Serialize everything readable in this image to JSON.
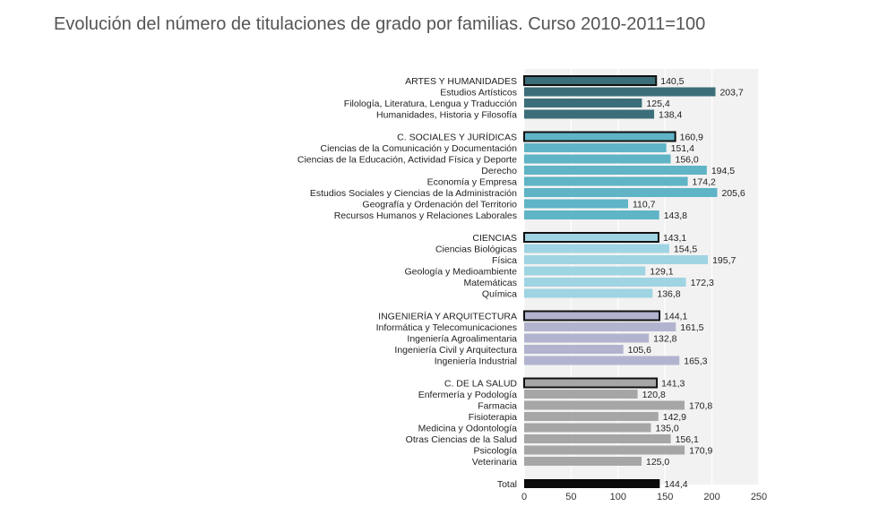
{
  "chart_data": {
    "type": "bar",
    "orientation": "horizontal",
    "title": "Evolución del número de titulaciones de grado por familias. Curso 2010-2011=100",
    "xlabel": "",
    "ylabel": "",
    "xlim": [
      0,
      250
    ],
    "xticks": [
      "0",
      "50",
      "100",
      "150",
      "200",
      "250"
    ],
    "grid": true,
    "legend": "none",
    "groups": [
      {
        "name": "ARTES Y HUMANIDADES",
        "value": 140.5,
        "label": "140,5",
        "color": "#3b6e78",
        "border": "#111111",
        "items": [
          {
            "name": "Estudios Artísticos",
            "value": 203.7,
            "label": "203,7"
          },
          {
            "name": "Filología, Literatura, Lengua y Traducción",
            "value": 125.4,
            "label": "125,4"
          },
          {
            "name": "Humanidades, Historia y Filosofía",
            "value": 138.4,
            "label": "138,4"
          }
        ]
      },
      {
        "name": "C. SOCIALES Y JURÍDICAS",
        "value": 160.9,
        "label": "160,9",
        "color": "#5fb4c6",
        "border": "#111111",
        "items": [
          {
            "name": "Ciencias de la Comunicación y Documentación",
            "value": 151.4,
            "label": "151,4"
          },
          {
            "name": "Ciencias de la Educación, Actividad Física y Deporte",
            "value": 156.0,
            "label": "156,0"
          },
          {
            "name": "Derecho",
            "value": 194.5,
            "label": "194,5"
          },
          {
            "name": "Economía y Empresa",
            "value": 174.2,
            "label": "174,2"
          },
          {
            "name": "Estudios Sociales y Ciencias de la Administración",
            "value": 205.6,
            "label": "205,6"
          },
          {
            "name": "Geografía y Ordenación del Territorio",
            "value": 110.7,
            "label": "110,7"
          },
          {
            "name": "Recursos Humanos y Relaciones Laborales",
            "value": 143.8,
            "label": "143,8"
          }
        ]
      },
      {
        "name": "CIENCIAS",
        "value": 143.1,
        "label": "143,1",
        "color": "#9fd4e2",
        "border": "#111111",
        "items": [
          {
            "name": "Ciencias Biológicas",
            "value": 154.5,
            "label": "154,5"
          },
          {
            "name": "Física",
            "value": 195.7,
            "label": "195,7"
          },
          {
            "name": "Geología y Medioambiente",
            "value": 129.1,
            "label": "129,1"
          },
          {
            "name": "Matemáticas",
            "value": 172.3,
            "label": "172,3"
          },
          {
            "name": "Química",
            "value": 136.8,
            "label": "136,8"
          }
        ]
      },
      {
        "name": "INGENIERÍA Y ARQUITECTURA",
        "value": 144.1,
        "label": "144,1",
        "color": "#b2b4cf",
        "border": "#111111",
        "items": [
          {
            "name": "Informática y Telecomunicaciones",
            "value": 161.5,
            "label": "161,5"
          },
          {
            "name": "Ingeniería Agroalimentaria",
            "value": 132.8,
            "label": "132,8"
          },
          {
            "name": "Ingeniería Civil y Arquitectura",
            "value": 105.6,
            "label": "105,6"
          },
          {
            "name": "Ingeniería Industrial",
            "value": 165.3,
            "label": "165,3"
          }
        ]
      },
      {
        "name": "C. DE LA SALUD",
        "value": 141.3,
        "label": "141,3",
        "color": "#a6a6a6",
        "border": "#111111",
        "items": [
          {
            "name": "Enfermería y Podología",
            "value": 120.8,
            "label": "120,8"
          },
          {
            "name": "Farmacia",
            "value": 170.8,
            "label": "170,8"
          },
          {
            "name": "Fisioterapia",
            "value": 142.9,
            "label": "142,9"
          },
          {
            "name": "Medicina y Odontología",
            "value": 135.0,
            "label": "135,0"
          },
          {
            "name": "Otras Ciencias de la Salud",
            "value": 156.1,
            "label": "156,1"
          },
          {
            "name": "Psicología",
            "value": 170.9,
            "label": "170,9"
          },
          {
            "name": "Veterinaria",
            "value": 125.0,
            "label": "125,0"
          }
        ]
      }
    ],
    "total": {
      "name": "Total",
      "value": 144.4,
      "label": "144,4",
      "color": "#0a0a0a"
    }
  }
}
